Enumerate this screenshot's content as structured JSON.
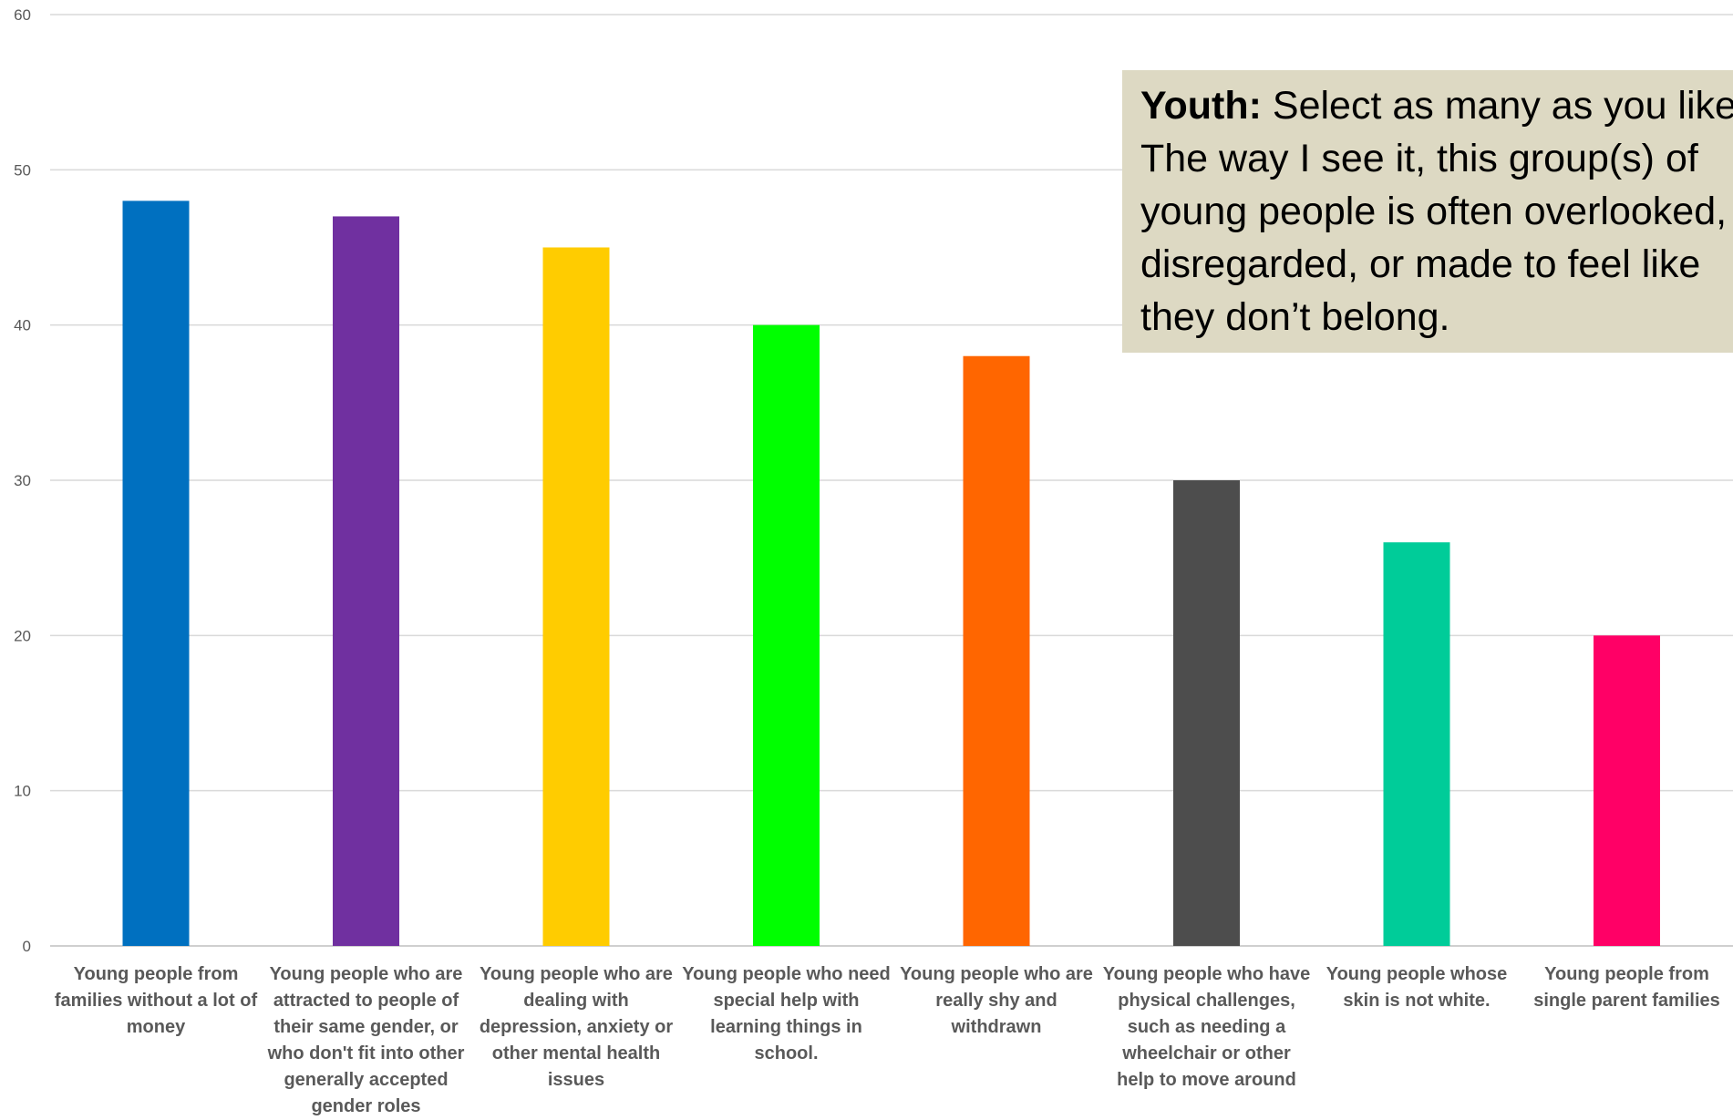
{
  "chart_data": {
    "type": "bar",
    "categories": [
      "Young people from families without a lot of money",
      "Young people who are attracted to people of their same gender, or who don't fit into other generally accepted gender roles",
      "Young people who are dealing with depression, anxiety or other mental health issues",
      "Young people who need special help with learning things in school.",
      "Young people who are really shy and withdrawn",
      "Young people who have physical challenges, such as needing a wheelchair or other help to move around",
      "Young people whose skin is not white.",
      "Young people from single parent families"
    ],
    "values": [
      48,
      47,
      45,
      40,
      38,
      30,
      26,
      20
    ],
    "colors": [
      "#0070c0",
      "#7030a0",
      "#ffcc00",
      "#00ff00",
      "#ff6600",
      "#4d4d4d",
      "#00cc99",
      "#ff0066"
    ],
    "ylim": [
      0,
      60
    ],
    "yticks": [
      0,
      10,
      20,
      30,
      40,
      50,
      60
    ],
    "grid": true,
    "title": "",
    "xlabel": "",
    "ylabel": ""
  },
  "callout": {
    "bold": "Youth:",
    "text": " Select as many as you like. The way I see it, this group(s) of young people is often overlooked, disregarded, or made to feel like they don’t belong."
  }
}
